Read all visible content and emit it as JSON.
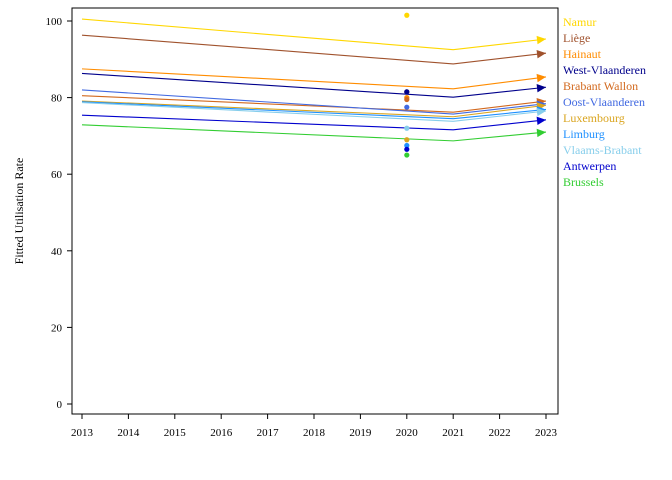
{
  "chart_data": {
    "type": "line",
    "ylabel": "Fitted Utilisation Rate",
    "xlabel": "",
    "xlim": [
      2013,
      2023
    ],
    "ylim": [
      0,
      102
    ],
    "x_ticks": [
      "2013",
      "2014",
      "2015",
      "2016",
      "2017",
      "2018",
      "2019",
      "2020",
      "2021",
      "2022",
      "2023"
    ],
    "y_ticks": [
      "0",
      "20",
      "40",
      "60",
      "80",
      "100"
    ],
    "x": [
      2013,
      2021,
      2023
    ],
    "legend_placement": "right",
    "grid": false,
    "series": [
      {
        "name": "Namur",
        "color": "#FFD700",
        "values": [
          100.5,
          92.5,
          95.3
        ],
        "observed_2020": 101.5
      },
      {
        "name": "Liège",
        "color": "#A0522D",
        "values": [
          96.3,
          88.8,
          91.6
        ],
        "observed_2020": 81.5
      },
      {
        "name": "Hainaut",
        "color": "#FF8C00",
        "values": [
          87.5,
          82.3,
          85.4
        ],
        "observed_2020": 80.0
      },
      {
        "name": "West-Vlaanderen",
        "color": "#00008B",
        "values": [
          86.3,
          80.1,
          82.7
        ],
        "observed_2020": 81.5
      },
      {
        "name": "Brabant Wallon",
        "color": "#D2691E",
        "values": [
          80.5,
          76.2,
          79.1
        ],
        "observed_2020": 79.5
      },
      {
        "name": "Oost-Vlaanderen",
        "color": "#4169E1",
        "values": [
          82.0,
          75.7,
          78.4
        ],
        "observed_2020": 77.5
      },
      {
        "name": "Luxembourg",
        "color": "#DAA520",
        "values": [
          79.1,
          75.0,
          78.0
        ],
        "observed_2020": 69.0
      },
      {
        "name": "Limburg",
        "color": "#1E90FF",
        "values": [
          78.9,
          74.5,
          76.9
        ],
        "observed_2020": 67.5
      },
      {
        "name": "Vlaams-Brabant",
        "color": "#87CEEB",
        "values": [
          78.7,
          73.8,
          76.5
        ],
        "observed_2020": 72.0
      },
      {
        "name": "Antwerpen",
        "color": "#0000CD",
        "values": [
          75.4,
          71.6,
          74.2
        ],
        "observed_2020": 66.5
      },
      {
        "name": "Brussels",
        "color": "#32CD32",
        "values": [
          72.9,
          68.7,
          71.0
        ],
        "observed_2020": 65.0
      }
    ]
  }
}
